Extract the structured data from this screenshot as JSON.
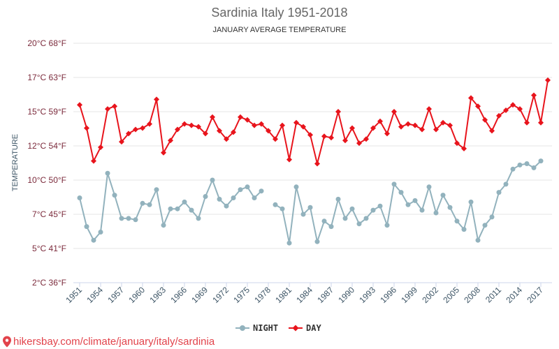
{
  "chart_data": {
    "type": "line",
    "title": "Sardinia Italy 1951-2018",
    "subtitle": "JANUARY AVERAGE TEMPERATURE",
    "ylabel": "TEMPERATURE",
    "ylim": [
      2.5,
      20
    ],
    "y_tick_labels": [
      "20°C 68°F",
      "17°C 63°F",
      "15°C 59°F",
      "12°C 54°F",
      "10°C 50°F",
      "7°C 45°F",
      "5°C 41°F",
      "2°C 36°F"
    ],
    "x_tick_labels": [
      "1951",
      "1954",
      "1957",
      "1960",
      "1963",
      "1966",
      "1969",
      "1972",
      "1975",
      "1978",
      "1981",
      "1984",
      "1987",
      "1990",
      "1993",
      "1996",
      "1999",
      "2002",
      "2005",
      "2008",
      "2011",
      "2014",
      "2017"
    ],
    "grid": true,
    "legend_position": "bottom",
    "x": [
      1951,
      1952,
      1953,
      1954,
      1955,
      1956,
      1957,
      1958,
      1959,
      1960,
      1961,
      1962,
      1963,
      1964,
      1965,
      1966,
      1967,
      1968,
      1969,
      1970,
      1971,
      1972,
      1973,
      1974,
      1975,
      1976,
      1977,
      1978,
      1979,
      1980,
      1981,
      1982,
      1983,
      1984,
      1985,
      1986,
      1987,
      1988,
      1989,
      1990,
      1991,
      1992,
      1993,
      1994,
      1995,
      1996,
      1997,
      1998,
      1999,
      2000,
      2001,
      2002,
      2003,
      2004,
      2005,
      2006,
      2007,
      2008,
      2009,
      2010,
      2011,
      2012,
      2013,
      2014,
      2015,
      2016,
      2017,
      2018
    ],
    "series": [
      {
        "name": "NIGHT",
        "color": "#92b2bd",
        "marker": "circle",
        "values": [
          8.7,
          6.6,
          5.6,
          6.2,
          10.5,
          8.9,
          7.2,
          7.2,
          7.1,
          8.3,
          8.2,
          9.3,
          6.7,
          7.9,
          7.9,
          8.4,
          7.8,
          7.2,
          8.8,
          10.0,
          8.6,
          8.1,
          8.7,
          9.3,
          9.5,
          8.7,
          9.2,
          null,
          8.2,
          7.9,
          5.4,
          9.5,
          7.5,
          8.0,
          5.5,
          7.0,
          6.6,
          8.6,
          7.2,
          7.9,
          6.8,
          7.2,
          7.8,
          8.1,
          6.7,
          9.7,
          9.1,
          8.2,
          8.5,
          7.8,
          9.5,
          7.6,
          8.9,
          8.0,
          7.0,
          6.4,
          8.4,
          5.6,
          6.7,
          7.3,
          9.1,
          9.7,
          10.8,
          11.1,
          11.2,
          10.9,
          11.4,
          null
        ]
      },
      {
        "name": "DAY",
        "color": "#e8141c",
        "marker": "diamond",
        "values": [
          15.5,
          13.8,
          11.4,
          12.4,
          15.2,
          15.4,
          12.8,
          13.4,
          13.7,
          13.8,
          14.1,
          15.9,
          12.0,
          12.9,
          13.7,
          14.1,
          14.0,
          13.9,
          13.4,
          14.6,
          13.6,
          13.0,
          13.5,
          14.6,
          14.4,
          14.0,
          14.1,
          13.6,
          13.0,
          14.0,
          11.5,
          14.2,
          13.9,
          13.3,
          11.2,
          13.2,
          13.1,
          15.0,
          12.9,
          13.8,
          12.7,
          13.0,
          13.8,
          14.3,
          13.4,
          15.0,
          13.9,
          14.1,
          14.0,
          13.7,
          15.2,
          13.7,
          14.2,
          14.0,
          12.7,
          12.3,
          16.0,
          15.4,
          14.4,
          13.6,
          14.7,
          15.1,
          15.5,
          15.2,
          14.2,
          16.2,
          14.2,
          17.3
        ]
      }
    ]
  },
  "footer": {
    "text": "hikersbay.com/climate/january/italy/sardinia",
    "icon": "location-pin-icon",
    "color": "#e2434b"
  }
}
